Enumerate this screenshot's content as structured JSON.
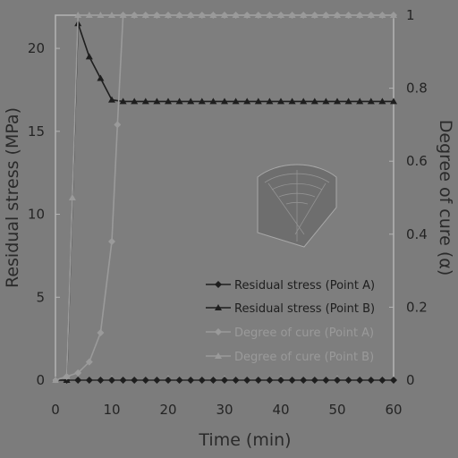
{
  "chart_data": {
    "type": "line",
    "xlabel": "Time (min)",
    "ylabel": "Residual stress (MPa)",
    "y2label": "Degree of cure (α)",
    "xlim": [
      0,
      60
    ],
    "ylim": [
      0,
      22
    ],
    "y2lim": [
      0,
      1
    ],
    "x_ticks": [
      "0",
      "10",
      "20",
      "30",
      "40",
      "50",
      "60"
    ],
    "y_ticks": [
      "0",
      "5",
      "10",
      "15",
      "20"
    ],
    "y2_ticks": [
      "0",
      "0.2",
      "0.4",
      "0.6",
      "0.8",
      "1"
    ],
    "grid": false,
    "legend_position": "lower-right",
    "series": [
      {
        "name": "Residual stress (Point A)",
        "axis": "left",
        "marker": "diamond",
        "color": "#1e1e1e",
        "x": [
          0,
          2,
          4,
          6,
          8,
          10,
          12,
          14,
          16,
          18,
          20,
          22,
          24,
          26,
          28,
          30,
          32,
          34,
          36,
          38,
          40,
          42,
          44,
          46,
          48,
          50,
          52,
          54,
          56,
          58,
          60
        ],
        "y": [
          0,
          0,
          0,
          0,
          0,
          0,
          0,
          0,
          0,
          0,
          0,
          0,
          0,
          0,
          0,
          0,
          0,
          0,
          0,
          0,
          0,
          0,
          0,
          0,
          0,
          0,
          0,
          0,
          0,
          0,
          0
        ]
      },
      {
        "name": "Residual stress (Point B)",
        "axis": "left",
        "marker": "triangle",
        "color": "#1e1e1e",
        "x": [
          0,
          2,
          4,
          6,
          8,
          10,
          12,
          14,
          16,
          18,
          20,
          22,
          24,
          26,
          28,
          30,
          32,
          34,
          36,
          38,
          40,
          42,
          44,
          46,
          48,
          50,
          52,
          54,
          56,
          58,
          60
        ],
        "y": [
          0,
          0,
          21.5,
          19.5,
          18.2,
          16.9,
          16.8,
          16.8,
          16.8,
          16.8,
          16.8,
          16.8,
          16.8,
          16.8,
          16.8,
          16.8,
          16.8,
          16.8,
          16.8,
          16.8,
          16.8,
          16.8,
          16.8,
          16.8,
          16.8,
          16.8,
          16.8,
          16.8,
          16.8,
          16.8,
          16.8
        ]
      },
      {
        "name": "Degree of cure (Point A)",
        "axis": "right",
        "marker": "diamond",
        "color": "#9a9a9a",
        "x": [
          0,
          2,
          4,
          6,
          8,
          10,
          11,
          12,
          14,
          16,
          18,
          20,
          22,
          24,
          26,
          28,
          30,
          32,
          34,
          36,
          38,
          40,
          42,
          44,
          46,
          48,
          50,
          52,
          54,
          56,
          58,
          60
        ],
        "y": [
          0,
          0.01,
          0.02,
          0.05,
          0.13,
          0.38,
          0.7,
          1,
          1,
          1,
          1,
          1,
          1,
          1,
          1,
          1,
          1,
          1,
          1,
          1,
          1,
          1,
          1,
          1,
          1,
          1,
          1,
          1,
          1,
          1,
          1,
          1
        ]
      },
      {
        "name": "Degree of cure (Point B)",
        "axis": "right",
        "marker": "triangle",
        "color": "#9a9a9a",
        "x": [
          0,
          2,
          3,
          4,
          6,
          8,
          10,
          12,
          14,
          16,
          18,
          20,
          22,
          24,
          26,
          28,
          30,
          32,
          34,
          36,
          38,
          40,
          42,
          44,
          46,
          48,
          50,
          52,
          54,
          56,
          58,
          60
        ],
        "y": [
          0,
          0.01,
          0.5,
          1,
          1,
          1,
          1,
          1,
          1,
          1,
          1,
          1,
          1,
          1,
          1,
          1,
          1,
          1,
          1,
          1,
          1,
          1,
          1,
          1,
          1,
          1,
          1,
          1,
          1,
          1,
          1,
          1
        ]
      }
    ]
  }
}
